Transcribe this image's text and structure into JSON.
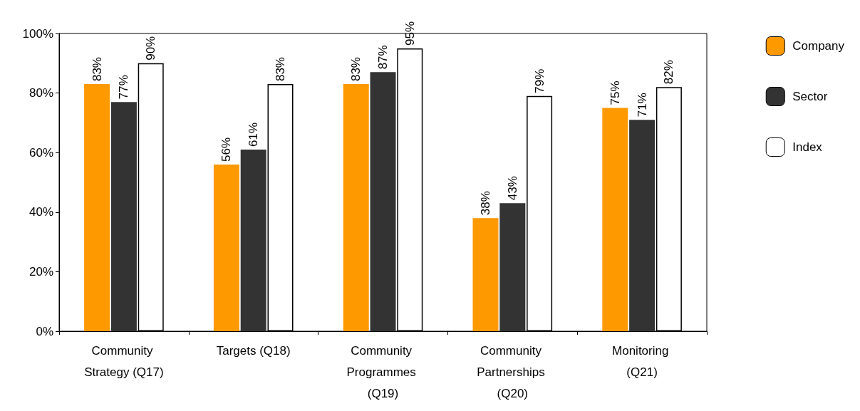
{
  "chart_data": {
    "type": "bar",
    "categories": [
      "Community Strategy (Q17)",
      "Targets (Q18)",
      "Community Programmes (Q19)",
      "Community Partnerships (Q20)",
      "Monitoring (Q21)"
    ],
    "series": [
      {
        "name": "Company",
        "color": "#ff9900",
        "values": [
          83,
          56,
          83,
          38,
          75
        ],
        "value_labels": [
          "83%",
          "56%",
          "83%",
          "38%",
          "75%"
        ]
      },
      {
        "name": "Sector",
        "color": "#333333",
        "values": [
          77,
          61,
          87,
          43,
          71
        ],
        "value_labels": [
          "77%",
          "61%",
          "87%",
          "43%",
          "71%"
        ]
      },
      {
        "name": "Index",
        "color": "#ffffff",
        "values": [
          90,
          83,
          95,
          79,
          82
        ],
        "value_labels": [
          "90%",
          "83%",
          "95%",
          "79%",
          "82%"
        ]
      }
    ],
    "ylim": [
      0,
      100
    ],
    "yticks": [
      {
        "value": 0,
        "label": "0%"
      },
      {
        "value": 20,
        "label": "20%"
      },
      {
        "value": 40,
        "label": "40%"
      },
      {
        "value": 60,
        "label": "60%"
      },
      {
        "value": 80,
        "label": "80%"
      },
      {
        "value": 100,
        "label": "100%"
      }
    ],
    "grid": false,
    "legend": "right"
  }
}
